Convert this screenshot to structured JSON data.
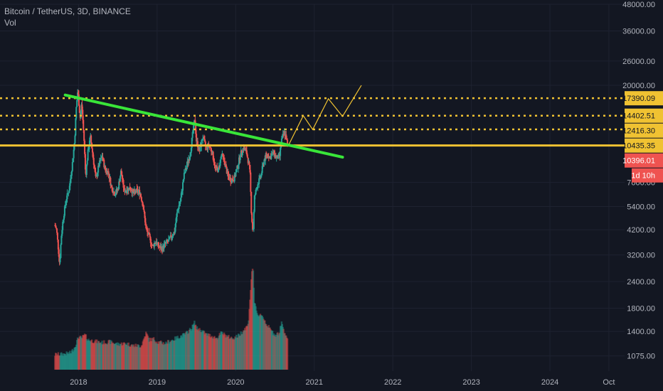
{
  "header": {
    "symbol_line": "Bitcoin / TetherUS, 3D, BINANCE",
    "indicator": "Vol"
  },
  "chart_data": {
    "type": "candlestick",
    "yscale": "log",
    "ylim": [
      1000,
      48000
    ],
    "y_ticks": [
      "48000.00",
      "36000.00",
      "26000.00",
      "20000.00",
      "7000.00",
      "5400.00",
      "4200.00",
      "3200.00",
      "2400.00",
      "1800.00",
      "1400.00",
      "1075.00"
    ],
    "x_ticks": [
      "2018",
      "2019",
      "2020",
      "2021",
      "2022",
      "2023",
      "2024",
      "Oct"
    ],
    "x_tick_years": [
      2018,
      2019,
      2020,
      2021,
      2022,
      2023,
      2024,
      2024.75
    ],
    "xlim": [
      2017.0,
      2024.95
    ],
    "price_path": [
      [
        2017.7,
        4400
      ],
      [
        2017.72,
        4200
      ],
      [
        2017.74,
        3500
      ],
      [
        2017.76,
        2900
      ],
      [
        2017.78,
        3900
      ],
      [
        2017.8,
        4600
      ],
      [
        2017.84,
        5800
      ],
      [
        2017.88,
        6500
      ],
      [
        2017.92,
        8500
      ],
      [
        2017.95,
        11000
      ],
      [
        2017.97,
        15500
      ],
      [
        2017.99,
        19000
      ],
      [
        2018.02,
        14000
      ],
      [
        2018.04,
        16500
      ],
      [
        2018.07,
        11000
      ],
      [
        2018.09,
        7500
      ],
      [
        2018.12,
        9800
      ],
      [
        2018.15,
        11500
      ],
      [
        2018.18,
        9500
      ],
      [
        2018.22,
        7200
      ],
      [
        2018.26,
        8500
      ],
      [
        2018.3,
        9300
      ],
      [
        2018.34,
        8000
      ],
      [
        2018.38,
        7800
      ],
      [
        2018.42,
        6600
      ],
      [
        2018.46,
        6200
      ],
      [
        2018.5,
        6500
      ],
      [
        2018.54,
        7900
      ],
      [
        2018.58,
        6400
      ],
      [
        2018.62,
        6500
      ],
      [
        2018.66,
        6600
      ],
      [
        2018.7,
        6200
      ],
      [
        2018.74,
        6400
      ],
      [
        2018.78,
        6300
      ],
      [
        2018.82,
        5500
      ],
      [
        2018.86,
        4200
      ],
      [
        2018.9,
        3900
      ],
      [
        2018.94,
        3500
      ],
      [
        2018.98,
        3700
      ],
      [
        2019.02,
        3500
      ],
      [
        2019.06,
        3400
      ],
      [
        2019.1,
        3600
      ],
      [
        2019.14,
        3700
      ],
      [
        2019.18,
        3900
      ],
      [
        2019.22,
        4100
      ],
      [
        2019.26,
        5200
      ],
      [
        2019.3,
        5800
      ],
      [
        2019.34,
        7500
      ],
      [
        2019.38,
        8500
      ],
      [
        2019.42,
        9500
      ],
      [
        2019.46,
        12500
      ],
      [
        2019.48,
        13800
      ],
      [
        2019.5,
        11000
      ],
      [
        2019.54,
        9800
      ],
      [
        2019.58,
        11500
      ],
      [
        2019.62,
        10200
      ],
      [
        2019.66,
        10500
      ],
      [
        2019.7,
        9700
      ],
      [
        2019.74,
        8200
      ],
      [
        2019.78,
        8000
      ],
      [
        2019.82,
        9500
      ],
      [
        2019.86,
        8700
      ],
      [
        2019.9,
        7500
      ],
      [
        2019.94,
        7200
      ],
      [
        2019.98,
        7300
      ],
      [
        2020.02,
        8200
      ],
      [
        2020.06,
        9500
      ],
      [
        2020.1,
        10200
      ],
      [
        2020.14,
        9600
      ],
      [
        2020.18,
        8000
      ],
      [
        2020.2,
        5000
      ],
      [
        2020.22,
        4000
      ],
      [
        2020.24,
        6000
      ],
      [
        2020.28,
        6900
      ],
      [
        2020.32,
        7500
      ],
      [
        2020.36,
        8900
      ],
      [
        2020.4,
        9500
      ],
      [
        2020.44,
        9200
      ],
      [
        2020.48,
        9700
      ],
      [
        2020.52,
        9100
      ],
      [
        2020.56,
        9300
      ],
      [
        2020.58,
        11000
      ],
      [
        2020.62,
        12000
      ],
      [
        2020.64,
        11500
      ],
      [
        2020.66,
        10400
      ]
    ],
    "volume_path": [
      [
        2017.7,
        1090
      ],
      [
        2017.8,
        1095
      ],
      [
        2017.9,
        1110
      ],
      [
        2017.95,
        1180
      ],
      [
        2018.0,
        1320
      ],
      [
        2018.04,
        1300
      ],
      [
        2018.08,
        1350
      ],
      [
        2018.12,
        1280
      ],
      [
        2018.2,
        1260
      ],
      [
        2018.3,
        1240
      ],
      [
        2018.4,
        1250
      ],
      [
        2018.5,
        1220
      ],
      [
        2018.6,
        1230
      ],
      [
        2018.7,
        1200
      ],
      [
        2018.8,
        1200
      ],
      [
        2018.86,
        1380
      ],
      [
        2018.9,
        1280
      ],
      [
        2018.96,
        1290
      ],
      [
        2019.0,
        1250
      ],
      [
        2019.1,
        1230
      ],
      [
        2019.2,
        1280
      ],
      [
        2019.28,
        1320
      ],
      [
        2019.36,
        1360
      ],
      [
        2019.44,
        1450
      ],
      [
        2019.48,
        1550
      ],
      [
        2019.5,
        1450
      ],
      [
        2019.56,
        1420
      ],
      [
        2019.62,
        1360
      ],
      [
        2019.7,
        1330
      ],
      [
        2019.76,
        1300
      ],
      [
        2019.82,
        1380
      ],
      [
        2019.9,
        1320
      ],
      [
        2019.96,
        1300
      ],
      [
        2020.04,
        1340
      ],
      [
        2020.1,
        1420
      ],
      [
        2020.16,
        1500
      ],
      [
        2020.2,
        2500
      ],
      [
        2020.22,
        2900
      ],
      [
        2020.24,
        1900
      ],
      [
        2020.28,
        1650
      ],
      [
        2020.32,
        1700
      ],
      [
        2020.36,
        1600
      ],
      [
        2020.4,
        1500
      ],
      [
        2020.46,
        1400
      ],
      [
        2020.5,
        1350
      ],
      [
        2020.56,
        1380
      ],
      [
        2020.58,
        1550
      ],
      [
        2020.62,
        1400
      ],
      [
        2020.66,
        1300
      ]
    ],
    "price_labels": [
      {
        "text": "17390.09",
        "value": 17390.09,
        "bg": "#f0c232",
        "fg": "#131722"
      },
      {
        "text": "14402.51",
        "value": 14402.51,
        "bg": "#f0c232",
        "fg": "#131722"
      },
      {
        "text": "12416.30",
        "value": 12416.3,
        "bg": "#f0c232",
        "fg": "#131722"
      },
      {
        "text": "10435.35",
        "value": 10435.35,
        "bg": "#f0c232",
        "fg": "#131722"
      },
      {
        "text": "10396.01",
        "value": 10396.01,
        "bg": "#ef5350",
        "fg": "#ffffff"
      }
    ],
    "countdown": {
      "text": "1d 10h",
      "bg": "#ef5350",
      "fg": "#ffffff"
    },
    "dotted_levels": [
      17390.09,
      14402.51,
      12416.3
    ],
    "solid_level": 10435.35,
    "trendline": {
      "from": [
        2017.83,
        18000
      ],
      "to": [
        2021.36,
        9200
      ],
      "color": "#39e639"
    },
    "projection": [
      [
        2020.68,
        10600
      ],
      [
        2020.86,
        14400
      ],
      [
        2020.98,
        12400
      ],
      [
        2021.18,
        17300
      ],
      [
        2021.36,
        14300
      ],
      [
        2021.6,
        20000
      ]
    ],
    "colors": {
      "up": "#26a69a",
      "down": "#ef5350",
      "level": "#f0c232",
      "grid": "#1e2230",
      "axis_text": "#b2b5be"
    }
  }
}
